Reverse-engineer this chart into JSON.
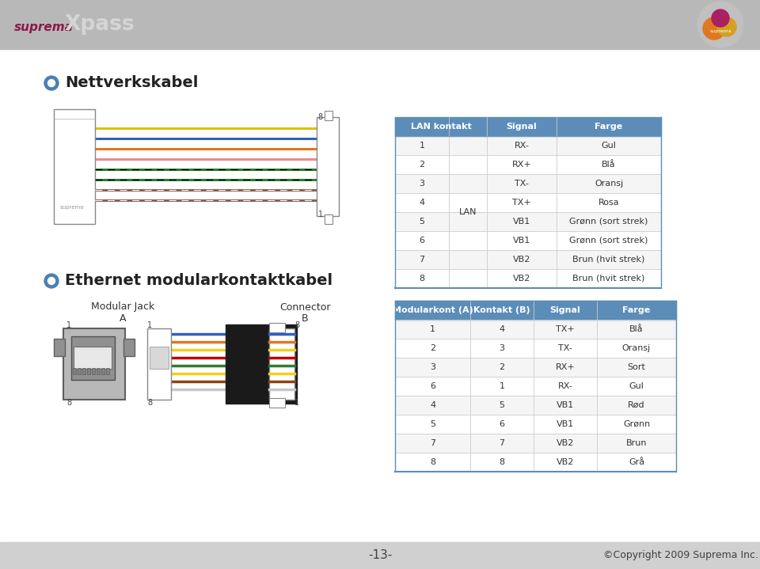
{
  "bg_color": "#ffffff",
  "header_bar_color": "#c0c0c0",
  "footer_bar_color": "#d0d0d0",
  "suprema_color": "#8b1a4a",
  "xpass_color": "#d8d8d8",
  "table_header_color": "#5b8db8",
  "bullet_color": "#4a7fb5",
  "section1_title": "Nettverkskabel",
  "section2_title": "Ethernet modularkontaktkabel",
  "table1_header": [
    "LAN kontakt",
    "Signal",
    "Farge"
  ],
  "table1_rows": [
    [
      "1",
      "RX-",
      "Gul"
    ],
    [
      "2",
      "RX+",
      "Blå"
    ],
    [
      "3",
      "TX-",
      "Oransj"
    ],
    [
      "4",
      "TX+",
      "Rosa"
    ],
    [
      "5",
      "VB1",
      "Grønn (sort strek)"
    ],
    [
      "6",
      "VB1",
      "Grønn (sort strek)"
    ],
    [
      "7",
      "VB2",
      "Brun (hvit strek)"
    ],
    [
      "8",
      "VB2",
      "Brun (hvit strek)"
    ]
  ],
  "table1_merged_label": "LAN",
  "table2_header": [
    "Modularkont (A)",
    "Kontakt (B)",
    "Signal",
    "Farge"
  ],
  "table2_rows": [
    [
      "1",
      "4",
      "TX+",
      "Blå"
    ],
    [
      "2",
      "3",
      "TX-",
      "Oransj"
    ],
    [
      "3",
      "2",
      "RX+",
      "Sort"
    ],
    [
      "6",
      "1",
      "RX-",
      "Gul"
    ],
    [
      "4",
      "5",
      "VB1",
      "Rød"
    ],
    [
      "5",
      "6",
      "VB1",
      "Grønn"
    ],
    [
      "7",
      "7",
      "VB2",
      "Brun"
    ],
    [
      "8",
      "8",
      "VB2",
      "Grå"
    ]
  ],
  "footer_page": "-13-",
  "footer_copy": "©Copyright 2009 Suprema Inc.",
  "lan_wire_colors": [
    "#b8860b",
    "#b8860b",
    "#2e8b57",
    "#2e8b57",
    "#c08040",
    "#e08080",
    "#e07820",
    "#3060c0"
  ],
  "lan_wire_styles": [
    "dashed",
    "dashed",
    "solid",
    "solid",
    "solid",
    "solid",
    "solid",
    "solid"
  ],
  "eth_wire_colors": [
    "#3060c0",
    "#e07820",
    "#f0e020",
    "#c00000",
    "#2e8b57",
    "#f0e020",
    "#8B4513",
    "#c8c8c8"
  ]
}
